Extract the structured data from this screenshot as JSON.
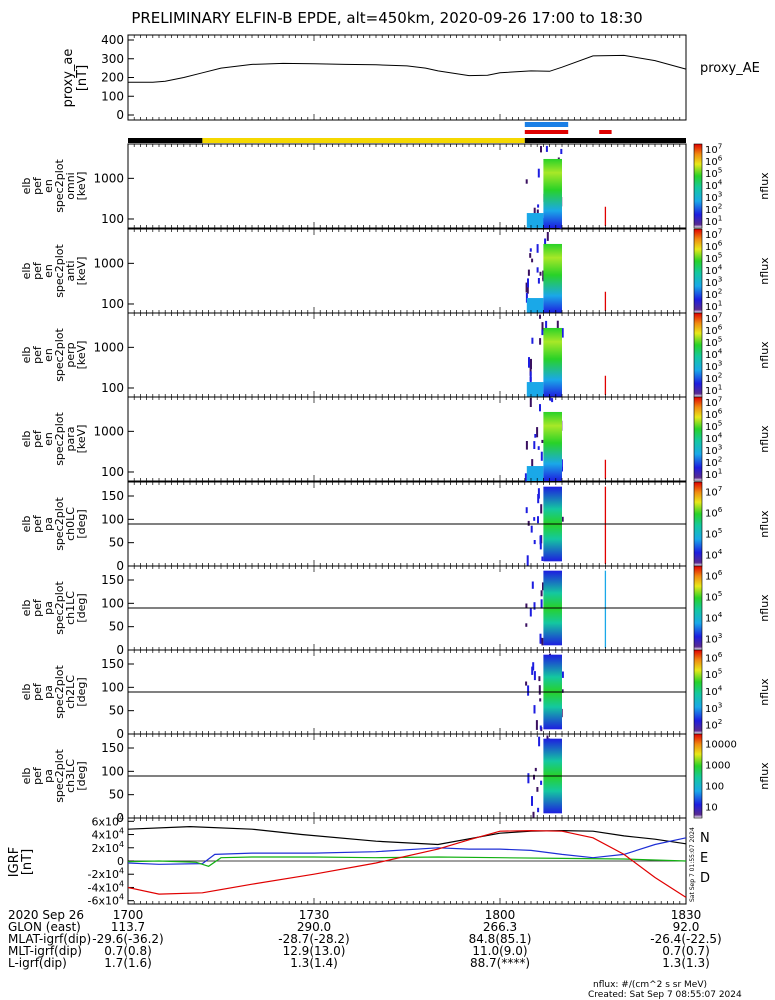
{
  "title": "PRELIMINARY ELFIN-B EPDE, alt=450km, 2020-09-26 17:00 to 18:30",
  "colors": {
    "line": "#000000",
    "yellow": "#f5d800",
    "blue": "#1a7fe6",
    "red": "#e00000",
    "grf_n": "#1e2fd6",
    "grf_e": "#12b012",
    "grf_d": "#e00000"
  },
  "chart_data": [
    {
      "id": "proxy_ae",
      "type": "line",
      "ylabel_lines": [
        "proxy_ae",
        "[nT]"
      ],
      "series_label": "proxy_AE",
      "ylim": [
        0,
        400
      ],
      "yticks": [
        0,
        100,
        200,
        300,
        400
      ],
      "x": [
        1700,
        1704,
        1706,
        1709,
        1712,
        1715,
        1720,
        1725,
        1730,
        1735,
        1740,
        1745,
        1748,
        1750,
        1755,
        1758,
        1800,
        1805,
        1808,
        1810,
        1815,
        1820,
        1825,
        1830
      ],
      "y": [
        175,
        175,
        180,
        200,
        225,
        250,
        270,
        275,
        273,
        270,
        268,
        262,
        250,
        235,
        210,
        212,
        225,
        235,
        233,
        255,
        315,
        318,
        290,
        245
      ]
    },
    {
      "id": "status_bars",
      "type": "timeline",
      "segments": [
        {
          "row": "black",
          "x0": 1700,
          "x1": 1712,
          "color": "black"
        },
        {
          "row": "black",
          "x0": 1712,
          "x1": 1804,
          "color": "yellow"
        },
        {
          "row": "black",
          "x0": 1804,
          "x1": 1830,
          "color": "black"
        },
        {
          "row": "top",
          "x0": 1804,
          "x1": 1811,
          "color": "blue"
        },
        {
          "row": "mid",
          "x0": 1804,
          "x1": 1811,
          "color": "red"
        },
        {
          "row": "mid",
          "x0": 1816,
          "x1": 1818,
          "color": "red"
        }
      ]
    },
    {
      "id": "pef_en_omni",
      "type": "heatmap",
      "ylabel_lines": [
        "elb",
        "pef",
        "en",
        "spec2plot",
        "omni",
        "[keV]"
      ],
      "yscale": "log",
      "ylim": [
        60,
        7000
      ],
      "yticks": [
        100,
        1000
      ],
      "zlabel": "nflux",
      "ztick_labels": [
        "10^1",
        "10^2",
        "10^3",
        "10^4",
        "10^5",
        "10^6",
        "10^7"
      ]
    },
    {
      "id": "pef_en_anti",
      "type": "heatmap",
      "ylabel_lines": [
        "elb",
        "pef",
        "en",
        "spec2plot",
        "anti",
        "[keV]"
      ],
      "yscale": "log",
      "ylim": [
        60,
        7000
      ],
      "yticks": [
        100,
        1000
      ],
      "zlabel": "nflux",
      "ztick_labels": [
        "10^1",
        "10^2",
        "10^3",
        "10^4",
        "10^5",
        "10^6",
        "10^7"
      ]
    },
    {
      "id": "pef_en_perp",
      "type": "heatmap",
      "ylabel_lines": [
        "elb",
        "pef",
        "en",
        "spec2plot",
        "perp",
        "[keV]"
      ],
      "yscale": "log",
      "ylim": [
        60,
        7000
      ],
      "yticks": [
        100,
        1000
      ],
      "zlabel": "nflux",
      "ztick_labels": [
        "10^1",
        "10^2",
        "10^3",
        "10^4",
        "10^5",
        "10^6",
        "10^7"
      ]
    },
    {
      "id": "pef_en_para",
      "type": "heatmap",
      "ylabel_lines": [
        "elb",
        "pef",
        "en",
        "spec2plot",
        "para",
        "[keV]"
      ],
      "yscale": "log",
      "ylim": [
        60,
        7000
      ],
      "yticks": [
        100,
        1000
      ],
      "zlabel": "nflux",
      "ztick_labels": [
        "10^1",
        "10^2",
        "10^3",
        "10^4",
        "10^5",
        "10^6",
        "10^7"
      ]
    },
    {
      "id": "pef_pa_ch0LC",
      "type": "heatmap",
      "ylabel_lines": [
        "elb",
        "pef",
        "pa",
        "spec2plot",
        "ch0LC",
        "[deg]"
      ],
      "ylim": [
        0,
        180
      ],
      "yticks": [
        0,
        50,
        100,
        150
      ],
      "zlabel": "nflux",
      "ztick_labels": [
        "10^4",
        "10^5",
        "10^6",
        "10^7"
      ]
    },
    {
      "id": "pef_pa_ch1LC",
      "type": "heatmap",
      "ylabel_lines": [
        "elb",
        "pef",
        "pa",
        "spec2plot",
        "ch1LC",
        "[deg]"
      ],
      "ylim": [
        0,
        180
      ],
      "yticks": [
        0,
        50,
        100,
        150
      ],
      "zlabel": "nflux",
      "ztick_labels": [
        "10^3",
        "10^4",
        "10^5",
        "10^6"
      ]
    },
    {
      "id": "pef_pa_ch2LC",
      "type": "heatmap",
      "ylabel_lines": [
        "elb",
        "pef",
        "pa",
        "spec2plot",
        "ch2LC",
        "[deg]"
      ],
      "ylim": [
        0,
        180
      ],
      "yticks": [
        0,
        50,
        100,
        150
      ],
      "zlabel": "nflux",
      "ztick_labels": [
        "10^2",
        "10^3",
        "10^4",
        "10^5",
        "10^6"
      ]
    },
    {
      "id": "pef_pa_ch3LC",
      "type": "heatmap",
      "ylabel_lines": [
        "elb",
        "pef",
        "pa",
        "spec2plot",
        "ch3LC",
        "[deg]"
      ],
      "ylim": [
        0,
        180
      ],
      "yticks": [
        0,
        50,
        100,
        150
      ],
      "zlabel": "nflux",
      "ztick_labels": [
        "10",
        "100",
        "1000",
        "10000"
      ]
    },
    {
      "id": "igrf",
      "type": "line",
      "ylabel_lines": [
        "IGRF",
        "[nT]"
      ],
      "ylim": [
        -65000,
        65000
      ],
      "yticks": [
        -60000,
        -40000,
        -20000,
        0,
        20000,
        40000,
        60000
      ],
      "ytick_labels": [
        "-6x10^4",
        "-4x10^4",
        "-2x10^4",
        "0",
        "2x10^4",
        "4x10^4",
        "6x10^4"
      ],
      "legend": [
        "N",
        "E",
        "D"
      ],
      "side_label": "Sat Sep  7 01:55:07 2024",
      "series": [
        {
          "name": "N",
          "x": [
            1700,
            1710,
            1720,
            1728,
            1740,
            1750,
            1800,
            1805,
            1810,
            1815,
            1820,
            1825,
            1830
          ],
          "y": [
            48000,
            52000,
            48000,
            40000,
            30000,
            25000,
            42000,
            45000,
            46000,
            45000,
            38000,
            33000,
            26000
          ]
        },
        {
          "name": "N",
          "x": [
            1700,
            1705,
            1712,
            1714,
            1720,
            1730,
            1740,
            1750,
            1755,
            1800,
            1805,
            1810,
            1815,
            1820,
            1825,
            1830
          ],
          "y": [
            -3000,
            -5000,
            -4000,
            10000,
            12000,
            12000,
            14000,
            20000,
            18000,
            18000,
            16000,
            10000,
            5000,
            10000,
            25000,
            35000
          ]
        },
        {
          "name": "E",
          "x": [
            1700,
            1705,
            1711,
            1713,
            1715,
            1720,
            1730,
            1740,
            1750,
            1800,
            1810,
            1820,
            1830
          ],
          "y": [
            -1000,
            0,
            -2000,
            -8000,
            5000,
            6000,
            6000,
            5000,
            6000,
            5000,
            4000,
            3000,
            0
          ]
        },
        {
          "name": "D",
          "x": [
            1700,
            1705,
            1712,
            1720,
            1730,
            1740,
            1750,
            1755,
            1800,
            1805,
            1810,
            1815,
            1820,
            1825,
            1830
          ],
          "y": [
            -40000,
            -50000,
            -48000,
            -35000,
            -20000,
            -3000,
            18000,
            32000,
            45000,
            46000,
            45000,
            35000,
            10000,
            -25000,
            -55000
          ]
        }
      ]
    }
  ],
  "x_axis": {
    "tick_values": [
      1700,
      1730,
      1800,
      1830
    ],
    "row_labels": [
      "2020 Sep 26",
      "GLON (east)",
      "MLAT-igrf(dip)",
      "MLT-igrf(dip)",
      "L-igrf(dip)"
    ],
    "columns": [
      [
        "1700",
        "113.7",
        "-29.6(-36.2)",
        "0.7(0.8)",
        "1.7(1.6)"
      ],
      [
        "1730",
        "290.0",
        "-28.7(-28.2)",
        "12.9(13.0)",
        "1.3(1.4)"
      ],
      [
        "1800",
        "266.3",
        "84.8(85.1)",
        "11.0(9.0)",
        "88.7(****)"
      ],
      [
        "1830",
        "92.0",
        "-26.4(-22.5)",
        "0.7(0.7)",
        "1.3(1.3)"
      ]
    ]
  },
  "footer": {
    "units": "nflux: #/(cm^2 s sr MeV)",
    "created": "Created: Sat Sep  7 08:55:07 2024"
  }
}
